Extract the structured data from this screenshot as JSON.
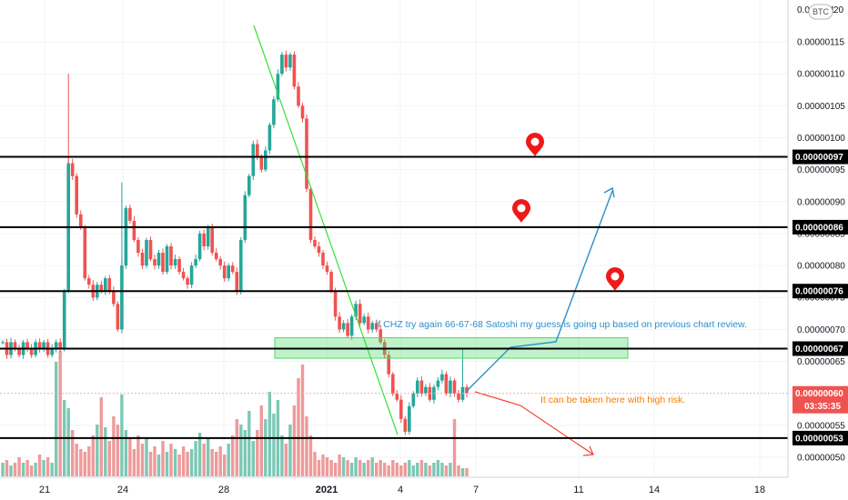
{
  "currency_badge": "BTC",
  "price_scale_top_clipped": "0.000001",
  "price_scale_top_clipped_suffix": "20",
  "chart_data": {
    "type": "candlestick",
    "symbol_quote": "BTC",
    "ylim": [
      4.7e-07,
      1.21e-06
    ],
    "price_ticks": [
      "0.00000115",
      "0.00000110",
      "0.00000105",
      "0.00000100",
      "0.00000095",
      "0.00000090",
      "0.00000085",
      "0.00000080",
      "0.00000075",
      "0.00000070",
      "0.00000065",
      "0.00000055",
      "0.00000050"
    ],
    "x_tick_labels": [
      {
        "label": "21",
        "bold": false
      },
      {
        "label": "24",
        "bold": false
      },
      {
        "label": "28",
        "bold": false
      },
      {
        "label": "2021",
        "bold": true
      },
      {
        "label": "4",
        "bold": false
      },
      {
        "label": "7",
        "bold": false
      },
      {
        "label": "11",
        "bold": false
      },
      {
        "label": "14",
        "bold": false
      },
      {
        "label": "18",
        "bold": false
      }
    ],
    "horizontal_levels": [
      {
        "value": 9.7e-07,
        "label": "0.00000097"
      },
      {
        "value": 8.6e-07,
        "label": "0.00000086"
      },
      {
        "value": 7.6e-07,
        "label": "0.00000076"
      },
      {
        "value": 6.7e-07,
        "label": "0.00000067"
      },
      {
        "value": 5.3e-07,
        "label": "0.00000053"
      }
    ],
    "last_price": {
      "value": 6e-07,
      "label": "0.00000060",
      "countdown": "03:35:35"
    },
    "zone": {
      "low": 6.55e-07,
      "high": 6.87e-07
    },
    "pin_markers": 3,
    "annotations": [
      {
        "text": "if CHZ try again 66-67-68 Satoshi my guess is going up based on previous chart review.",
        "color": "#2a8fc9"
      },
      {
        "text": "It can be taken here with high risk.",
        "color": "#f57c00"
      }
    ],
    "candles_close": [
      6.8e-07,
      6.6e-07,
      6.8e-07,
      6.7e-07,
      6.6e-07,
      6.8e-07,
      6.7e-07,
      6.6e-07,
      6.8e-07,
      6.7e-07,
      6.8e-07,
      6.6e-07,
      6.7e-07,
      6.8e-07,
      6.7e-07,
      7.6e-07,
      9.6e-07,
      9.4e-07,
      8.8e-07,
      8.6e-07,
      7.8e-07,
      7.7e-07,
      7.5e-07,
      7.7e-07,
      7.6e-07,
      7.8e-07,
      7.6e-07,
      7.4e-07,
      7e-07,
      8e-07,
      8.9e-07,
      8.7e-07,
      8.4e-07,
      8.2e-07,
      8e-07,
      8.4e-07,
      8.1e-07,
      8e-07,
      8.2e-07,
      7.9e-07,
      8.3e-07,
      8e-07,
      8.1e-07,
      7.9e-07,
      7.8e-07,
      7.7e-07,
      8e-07,
      8.1e-07,
      8.5e-07,
      8.3e-07,
      8.6e-07,
      8.2e-07,
      8.1e-07,
      8e-07,
      7.8e-07,
      8e-07,
      7.9e-07,
      7.6e-07,
      8.4e-07,
      9.1e-07,
      9.4e-07,
      9.9e-07,
      9.7e-07,
      9.5e-07,
      9.8e-07,
      1.02e-06,
      1.06e-06,
      1.1e-06,
      1.13e-06,
      1.11e-06,
      1.13e-06,
      1.08e-06,
      1.05e-06,
      1.03e-06,
      9.2e-07,
      8.4e-07,
      8.3e-07,
      8.2e-07,
      8e-07,
      7.9e-07,
      7.6e-07,
      7.2e-07,
      7e-07,
      7.1e-07,
      6.9e-07,
      7.2e-07,
      7.4e-07,
      7.1e-07,
      7.2e-07,
      7e-07,
      7.1e-07,
      7e-07,
      6.8e-07,
      6.6e-07,
      6.3e-07,
      6e-07,
      5.9e-07,
      5.6e-07,
      5.4e-07,
      5.8e-07,
      6e-07,
      6.2e-07,
      6e-07,
      6.1e-07,
      5.9e-07,
      6.1e-07,
      6.2e-07,
      6.3e-07,
      6e-07,
      6.2e-07,
      6e-07,
      5.9e-07,
      6.1e-07,
      6e-07
    ],
    "volumes": [
      0.5,
      0.6,
      0.4,
      0.5,
      0.7,
      0.5,
      0.6,
      0.4,
      0.5,
      0.8,
      0.6,
      0.7,
      0.5,
      4.2,
      4.6,
      2.8,
      2.5,
      1.7,
      1.2,
      1.0,
      0.9,
      1.1,
      1.5,
      1.9,
      2.9,
      1.8,
      1.3,
      2.2,
      1.9,
      3.0,
      1.7,
      1.4,
      1.0,
      1.5,
      1.2,
      1.4,
      0.9,
      1.1,
      0.8,
      1.3,
      0.9,
      1.2,
      1.0,
      0.8,
      1.1,
      0.9,
      1.0,
      1.3,
      1.6,
      1.2,
      1.4,
      1.0,
      0.9,
      1.1,
      0.8,
      1.2,
      1.5,
      2.1,
      1.9,
      1.7,
      2.4,
      1.3,
      1.7,
      2.6,
      2.1,
      3.1,
      2.3,
      2.8,
      1.5,
      1.2,
      1.9,
      2.6,
      3.6,
      4.1,
      2.2,
      1.5,
      0.9,
      0.6,
      0.8,
      0.7,
      0.6,
      0.5,
      0.8,
      0.7,
      0.6,
      0.5,
      0.7,
      0.6,
      0.5,
      0.6,
      0.7,
      0.5,
      0.6,
      0.5,
      0.4,
      0.6,
      0.5,
      0.4,
      0.5,
      0.6,
      0.4,
      0.5,
      0.6,
      0.5,
      0.4,
      0.5,
      0.6,
      0.5,
      0.4,
      0.5,
      2.1,
      0.4,
      0.3,
      0.3
    ]
  }
}
